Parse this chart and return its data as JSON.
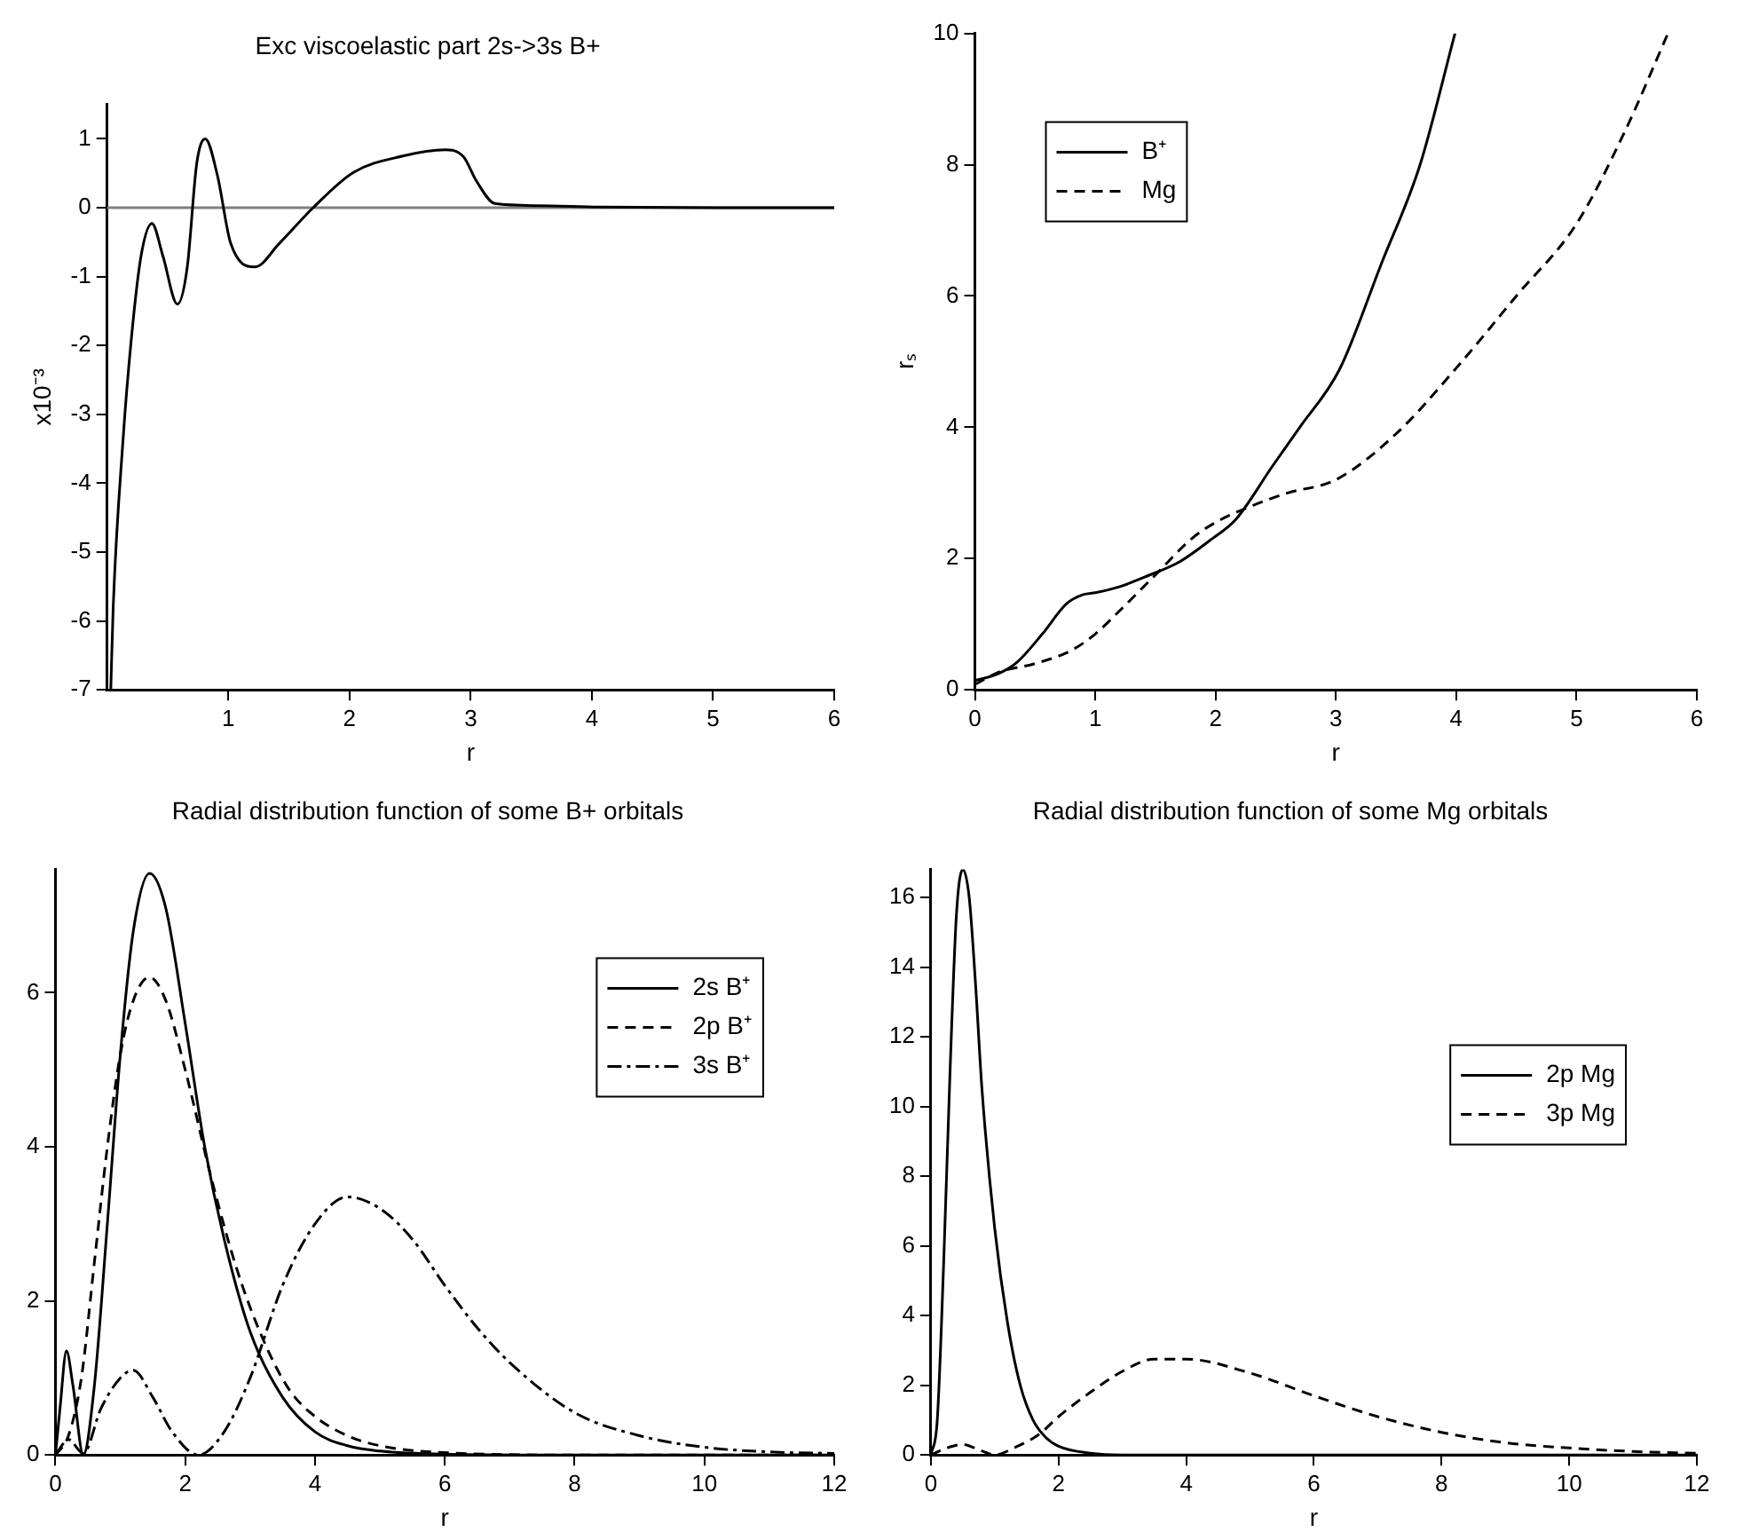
{
  "chart_data": [
    {
      "type": "line",
      "title": "Exc viscoelastic part 2s->3s B+",
      "xlabel": "r",
      "ylabel": "x10⁻³",
      "xlim": [
        0,
        6
      ],
      "xticks": [
        1,
        2,
        3,
        4,
        5,
        6
      ],
      "ylim": [
        -7,
        1.5
      ],
      "yticks": [
        -7,
        -6,
        -5,
        -4,
        -3,
        -2,
        -1,
        0,
        1
      ],
      "legend": false,
      "grid": false,
      "ref_lines": [
        {
          "axis": "y",
          "value": 0,
          "color": "#808080"
        }
      ],
      "series": [
        {
          "color": "#000000",
          "line_style": "solid",
          "x": [
            0.03,
            0.05,
            0.13,
            0.2,
            0.28,
            0.37,
            0.46,
            0.58,
            0.66,
            0.74,
            0.81,
            0.91,
            1.02,
            1.22,
            1.42,
            1.7,
            2.03,
            2.44,
            2.79,
            2.94,
            3.05,
            3.2,
            3.55,
            4.06,
            5.08,
            6.0
          ],
          "values": [
            -7,
            -5.8,
            -3.4,
            -1.9,
            -0.7,
            -0.23,
            -0.7,
            -1.4,
            -0.88,
            0.65,
            1.0,
            0.47,
            -0.52,
            -0.86,
            -0.52,
            0,
            0.51,
            0.75,
            0.84,
            0.74,
            0.38,
            0.06,
            0.03,
            0.01,
            0,
            0
          ]
        }
      ]
    },
    {
      "type": "line",
      "xlabel": "r",
      "ylabel": "rₛ",
      "xlim": [
        0,
        6
      ],
      "xticks": [
        0,
        1,
        2,
        3,
        4,
        5,
        6
      ],
      "ylim": [
        0,
        10
      ],
      "yticks": [
        0,
        2,
        4,
        6,
        8,
        10
      ],
      "legend": "top left",
      "grid": false,
      "series": [
        {
          "name": "B⁺",
          "color": "#000000",
          "line_style": "solid",
          "x": [
            0,
            0.2,
            0.35,
            0.56,
            0.76,
            0.9,
            1.0,
            1.2,
            1.44,
            1.7,
            1.97,
            2.17,
            2.47,
            2.7,
            3.03,
            3.38,
            3.7,
            3.99
          ],
          "values": [
            0.14,
            0.25,
            0.42,
            0.85,
            1.31,
            1.45,
            1.48,
            1.57,
            1.74,
            1.95,
            2.3,
            2.6,
            3.4,
            4.0,
            4.88,
            6.5,
            8.0,
            10
          ]
        },
        {
          "name": "Mg",
          "color": "#000000",
          "line_style": "dashed",
          "x": [
            0,
            0.2,
            0.5,
            0.8,
            1.0,
            1.2,
            1.5,
            1.8,
            2.0,
            2.3,
            2.6,
            3.0,
            3.5,
            4.0,
            4.5,
            5.0,
            5.4,
            5.76
          ],
          "values": [
            0.08,
            0.27,
            0.4,
            0.6,
            0.85,
            1.2,
            1.75,
            2.3,
            2.55,
            2.8,
            3.0,
            3.2,
            3.9,
            4.9,
            6.0,
            7.1,
            8.5,
            10
          ]
        }
      ]
    },
    {
      "type": "line",
      "title": "Radial distribution function of some B+ orbitals",
      "xlabel": "r",
      "xlim": [
        0,
        12
      ],
      "xticks": [
        0,
        2,
        4,
        6,
        8,
        10,
        12
      ],
      "ylim": [
        0,
        7.6
      ],
      "yticks": [
        0,
        2,
        4,
        6
      ],
      "legend": "top right",
      "grid": false,
      "series": [
        {
          "name": "2s B⁺",
          "color": "#000000",
          "line_style": "solid",
          "x": [
            0,
            0.07,
            0.17,
            0.27,
            0.43,
            0.6,
            0.8,
            1.0,
            1.2,
            1.45,
            1.7,
            2.0,
            2.3,
            2.6,
            3.0,
            3.5,
            4.0,
            4.5,
            5.0,
            6,
            8,
            12
          ],
          "values": [
            0,
            0.6,
            1.35,
            0.9,
            0,
            0.9,
            3.0,
            5.2,
            6.8,
            7.55,
            7.1,
            5.6,
            4.0,
            2.8,
            1.6,
            0.75,
            0.3,
            0.12,
            0.05,
            0.01,
            0,
            0
          ]
        },
        {
          "name": "2p B⁺",
          "color": "#000000",
          "line_style": "dashed",
          "x": [
            0,
            0.2,
            0.4,
            0.6,
            0.8,
            1.0,
            1.2,
            1.45,
            1.7,
            2.0,
            2.4,
            2.8,
            3.2,
            3.6,
            4.0,
            4.5,
            5.0,
            6,
            8,
            12
          ],
          "values": [
            0,
            0.25,
            1.0,
            2.5,
            4.0,
            5.2,
            5.9,
            6.2,
            5.9,
            5.0,
            3.6,
            2.4,
            1.5,
            0.85,
            0.5,
            0.25,
            0.12,
            0.03,
            0,
            0
          ]
        },
        {
          "name": "3s B⁺",
          "color": "#000000",
          "line_style": "dashdot",
          "x": [
            0,
            0.2,
            0.43,
            0.7,
            1.0,
            1.2,
            1.5,
            1.8,
            2.2,
            2.6,
            3.0,
            3.5,
            4.0,
            4.5,
            5.0,
            5.5,
            6.0,
            6.5,
            7.0,
            8.0,
            9.0,
            10.0,
            11,
            12
          ],
          "values": [
            0,
            0.2,
            0.02,
            0.6,
            1.0,
            1.1,
            0.75,
            0.3,
            0,
            0.3,
            1.0,
            2.2,
            3.0,
            3.35,
            3.2,
            2.8,
            2.2,
            1.65,
            1.2,
            0.55,
            0.25,
            0.1,
            0.04,
            0.02
          ]
        }
      ]
    },
    {
      "type": "line",
      "title": "Radial distribution function of some Mg orbitals",
      "xlabel": "r",
      "xlim": [
        0,
        12
      ],
      "xticks": [
        0,
        2,
        4,
        6,
        8,
        10,
        12
      ],
      "ylim": [
        0,
        16.8
      ],
      "yticks": [
        0,
        2,
        4,
        6,
        8,
        10,
        12,
        14,
        16
      ],
      "legend": "right",
      "grid": false,
      "series": [
        {
          "name": "2p Mg",
          "color": "#000000",
          "line_style": "solid",
          "x": [
            0,
            0.1,
            0.2,
            0.3,
            0.4,
            0.5,
            0.6,
            0.7,
            0.8,
            1.0,
            1.2,
            1.4,
            1.6,
            1.8,
            2.0,
            2.5,
            3,
            12
          ],
          "values": [
            0,
            1.0,
            5.5,
            11,
            15.5,
            16.8,
            16,
            13.5,
            10.5,
            6.5,
            3.8,
            2.0,
            1.0,
            0.5,
            0.25,
            0.05,
            0,
            0
          ]
        },
        {
          "name": "3p Mg",
          "color": "#000000",
          "line_style": "dashed",
          "x": [
            0,
            0.25,
            0.5,
            0.75,
            1.0,
            1.3,
            1.7,
            2.0,
            2.5,
            3.0,
            3.5,
            4.0,
            5.0,
            6.0,
            7.0,
            8.0,
            9.0,
            10,
            11,
            12
          ],
          "values": [
            0,
            0.2,
            0.3,
            0.15,
            0,
            0.2,
            0.6,
            1.1,
            1.8,
            2.4,
            2.75,
            2.75,
            2.35,
            1.7,
            1.1,
            0.65,
            0.35,
            0.2,
            0.1,
            0.05
          ]
        }
      ]
    }
  ]
}
